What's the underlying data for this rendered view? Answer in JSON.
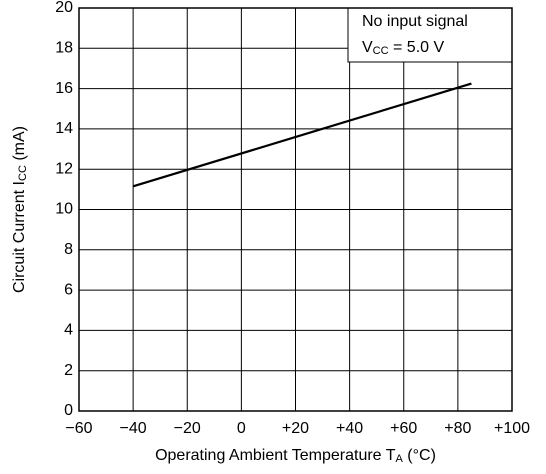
{
  "chart_data": {
    "type": "line",
    "x": [
      -40,
      85
    ],
    "series": [
      {
        "color": "#000000",
        "values": [
          11.15,
          16.25
        ]
      }
    ],
    "xlim": [
      -60,
      100
    ],
    "xticks": [
      {
        "value": -60,
        "label": "−60"
      },
      {
        "value": -40,
        "label": "−40"
      },
      {
        "value": -20,
        "label": "−20"
      },
      0,
      {
        "value": 20,
        "label": "+20"
      },
      {
        "value": 40,
        "label": "+40"
      },
      {
        "value": 60,
        "label": "+60"
      },
      {
        "value": 80,
        "label": "+80"
      },
      {
        "value": 100,
        "label": "+100"
      }
    ],
    "ylim": [
      0,
      20
    ],
    "yticks": [
      0,
      2,
      4,
      6,
      8,
      10,
      12,
      14,
      16,
      18,
      20
    ],
    "grid": true,
    "x_label": {
      "main": "Operating Ambient Temperature  T",
      "sub": "A",
      "rest": " (°C)"
    },
    "y_label": {
      "main": "Circuit Current  I",
      "sub": "CC",
      "rest": " (mA)"
    },
    "annotations": [
      {
        "main": "No input signal"
      },
      {
        "main": "V",
        "sub": "CC",
        "rest": " = 5.0 V"
      }
    ]
  }
}
